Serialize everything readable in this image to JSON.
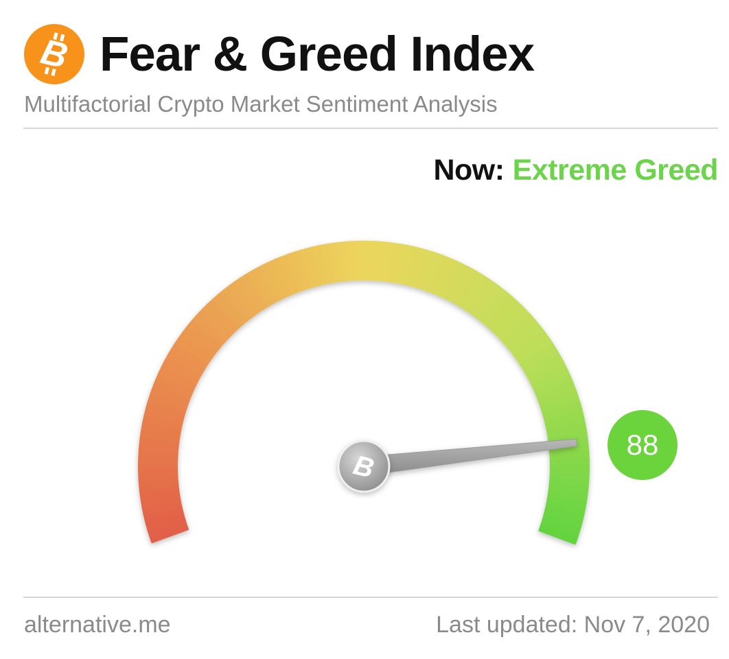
{
  "header": {
    "title": "Fear & Greed Index",
    "subtitle": "Multifactorial Crypto Market Sentiment Analysis",
    "logo_icon": "bitcoin-icon"
  },
  "now": {
    "label": "Now:",
    "classification": "Extreme Greed"
  },
  "footer": {
    "source": "alternative.me",
    "last_updated": "Last updated: Nov 7, 2020"
  },
  "colors": {
    "brand_orange": "#f7931a",
    "greed_green": "#6bd43d",
    "fear_red": "#e0604a",
    "neutral_yellow": "#ecd95a"
  },
  "chart_data": {
    "type": "gauge",
    "value": 88,
    "value_label": "88",
    "range": [
      0,
      100
    ],
    "classification": "Extreme Greed"
  }
}
